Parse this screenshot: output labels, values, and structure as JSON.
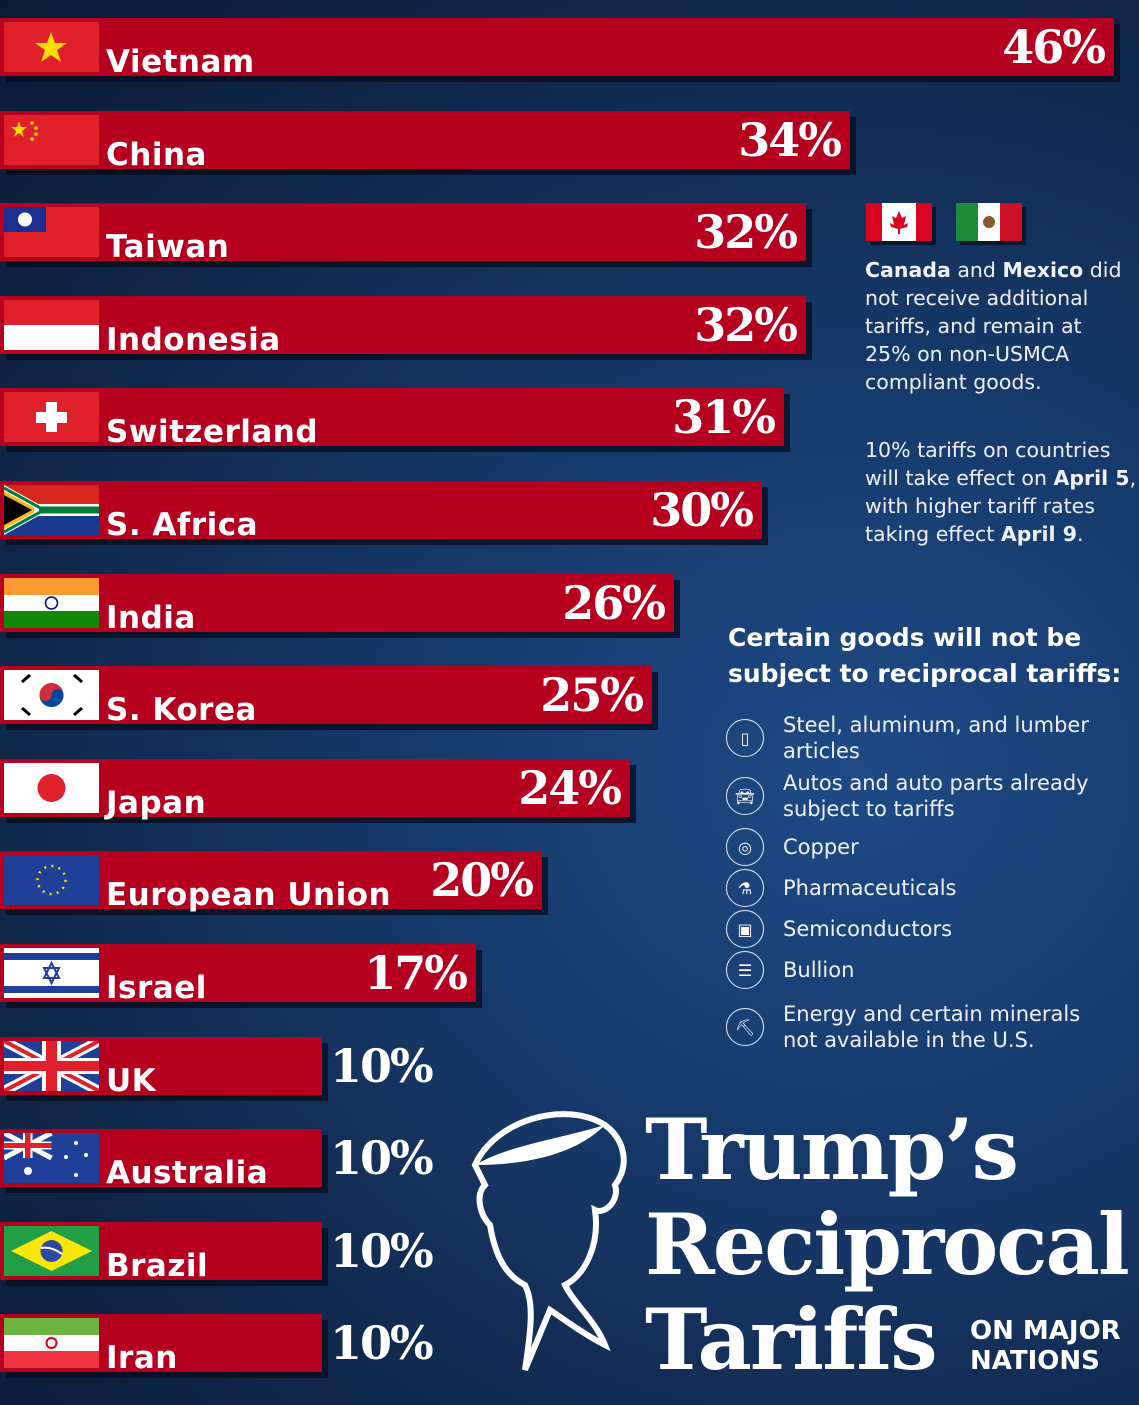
{
  "chart_data": {
    "type": "bar",
    "orientation": "horizontal",
    "title": "Trump's Reciprocal Tariffs",
    "subtitle": "ON MAJOR NATIONS",
    "categories": [
      "Vietnam",
      "China",
      "Taiwan",
      "Indonesia",
      "Switzerland",
      "S. Africa",
      "India",
      "S. Korea",
      "Japan",
      "European Union",
      "Israel",
      "UK",
      "Australia",
      "Brazil",
      "Iran"
    ],
    "values": [
      46,
      34,
      32,
      32,
      31,
      30,
      26,
      25,
      24,
      20,
      17,
      10,
      10,
      10,
      10
    ],
    "value_labels": [
      "46%",
      "34%",
      "32%",
      "32%",
      "31%",
      "30%",
      "26%",
      "25%",
      "24%",
      "20%",
      "17%",
      "10%",
      "10%",
      "10%",
      "10%"
    ],
    "unit": "%",
    "grid": false,
    "bar_color": "#b5001f"
  },
  "notes": {
    "canada_mexico": {
      "p1": "Canada",
      "p2": " and ",
      "p3": "Mexico",
      "p4": " did not receive additional tariffs, and remain at 25% on non-USMCA compliant goods."
    },
    "timing": {
      "p1": "10% tariffs on countries will take effect on ",
      "p2": "April 5",
      "p3": ", with higher tariff rates taking effect ",
      "p4": "April 9",
      "p5": "."
    }
  },
  "exemptions": {
    "heading": "Certain goods will not be subject to reciprocal tariffs:",
    "items": [
      {
        "icon": "can-icon",
        "label": "Steel, aluminum, and lumber articles"
      },
      {
        "icon": "car-icon",
        "label": "Autos and auto parts already subject to tariffs"
      },
      {
        "icon": "copper-roll-icon",
        "label": "Copper"
      },
      {
        "icon": "pill-bottle-icon",
        "label": "Pharmaceuticals"
      },
      {
        "icon": "chip-icon",
        "label": "Semiconductors"
      },
      {
        "icon": "gold-bars-icon",
        "label": "Bullion"
      },
      {
        "icon": "mineral-icon",
        "label": "Energy and certain minerals not available in the U.S."
      }
    ]
  },
  "title": {
    "line1": "Trump’s",
    "line2": "Reciprocal",
    "line3": "Tariffs",
    "sub1": "ON MAJOR",
    "sub2": "NATIONS"
  }
}
